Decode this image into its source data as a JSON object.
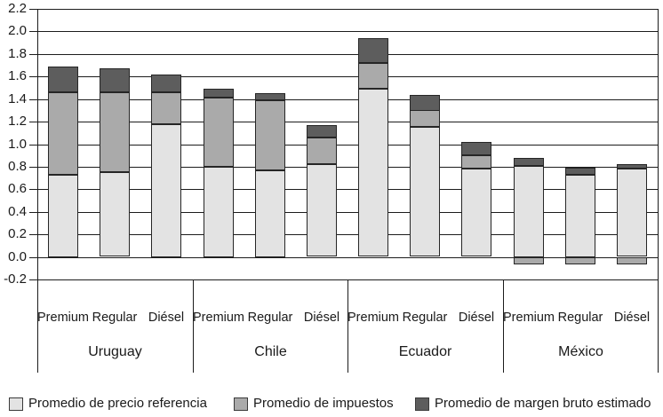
{
  "chart_data": {
    "type": "bar",
    "stacked": true,
    "title": "",
    "xlabel": "",
    "ylabel": "",
    "countries": [
      "Uruguay",
      "Chile",
      "Ecuador",
      "México"
    ],
    "fuels": [
      "Premium",
      "Regular",
      "Diésel"
    ],
    "categories": [
      "Uruguay Premium",
      "Uruguay Regular",
      "Uruguay Diésel",
      "Chile Premium",
      "Chile Regular",
      "Chile Diésel",
      "Ecuador Premium",
      "Ecuador Regular",
      "Ecuador Diésel",
      "México Premium",
      "México Regular",
      "México Diésel"
    ],
    "series": [
      {
        "name": "Promedio de precio referencia",
        "color": "#e3e3e3",
        "values": [
          0.73,
          0.75,
          1.18,
          0.8,
          0.77,
          0.82,
          1.49,
          1.15,
          0.78,
          0.81,
          0.73,
          0.78
        ]
      },
      {
        "name": "Promedio de impuestos",
        "color": "#aaaaaa",
        "values": [
          0.73,
          0.71,
          0.28,
          0.61,
          0.62,
          0.24,
          0.23,
          0.15,
          0.12,
          -0.06,
          -0.06,
          -0.06
        ]
      },
      {
        "name": "Promedio de margen bruto estimado",
        "color": "#5d5d5d",
        "values": [
          0.23,
          0.21,
          0.16,
          0.08,
          0.06,
          0.11,
          0.22,
          0.14,
          0.12,
          0.07,
          0.06,
          0.04
        ]
      }
    ],
    "ylim": [
      -0.2,
      2.2
    ],
    "ytick_labels": [
      "2.2",
      "2.0",
      "1.8",
      "1.6",
      "1.4",
      "1.2",
      "1.0",
      "0.8",
      "0.6",
      "0.4",
      "0.2",
      "0.0",
      "-0.2"
    ],
    "grid": true,
    "legend_position": "bottom"
  }
}
